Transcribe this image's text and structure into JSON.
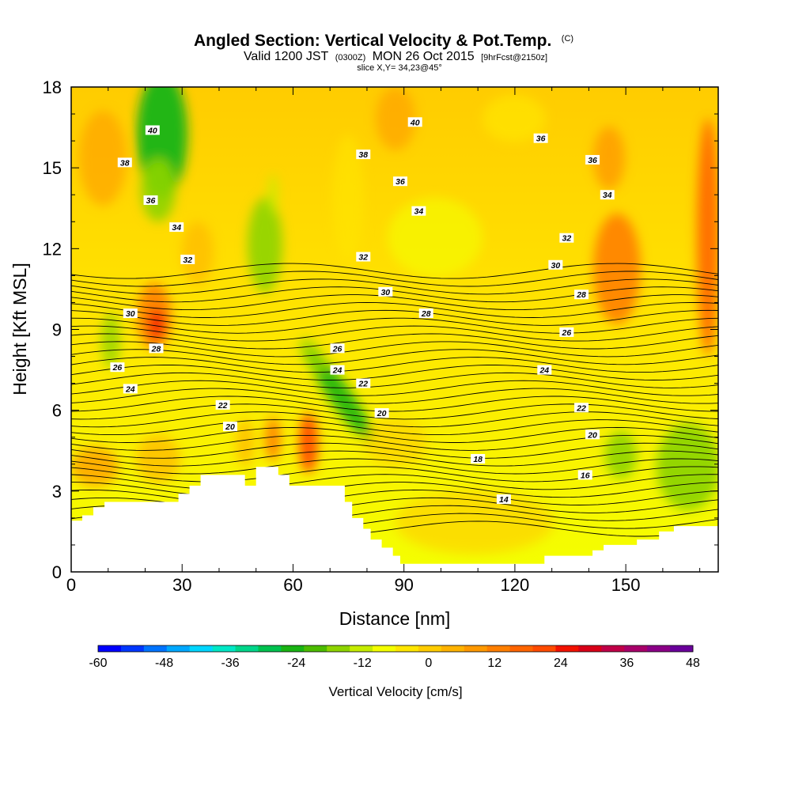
{
  "header": {
    "title_main": "Angled Section: Vertical Velocity & Pot.Temp.",
    "title_mark": "(C)",
    "valid_a": "Valid 1200 JST",
    "valid_b": "(0300Z)",
    "valid_c": "MON 26 Oct 2015",
    "valid_d": "[9hrFcst@2150z]",
    "slice": "slice X,Y= 34,23@45°"
  },
  "chart_data": {
    "type": "heatmap",
    "title": "Angled Section: Vertical Velocity & Pot.Temp.",
    "xlabel": "Distance [nm]",
    "ylabel": "Height [Kft MSL]",
    "xlim": [
      0,
      175
    ],
    "ylim": [
      0,
      18
    ],
    "x_ticks": [
      "0",
      "30",
      "60",
      "90",
      "120",
      "150"
    ],
    "x_tick_values": [
      0,
      30,
      60,
      90,
      120,
      150
    ],
    "y_ticks": [
      "0",
      "3",
      "6",
      "9",
      "12",
      "15",
      "18"
    ],
    "y_tick_values": [
      0,
      3,
      6,
      9,
      12,
      15,
      18
    ],
    "colorbar": {
      "title": "Vertical Velocity [cm/s]",
      "range": [
        -60,
        48
      ],
      "labels": [
        "-60",
        "-48",
        "-36",
        "-24",
        "-12",
        "0",
        "12",
        "24",
        "36",
        "48"
      ],
      "colors": [
        "#0000ff",
        "#0037ff",
        "#0074ff",
        "#00a8ff",
        "#00d6ff",
        "#00e8c6",
        "#00d68a",
        "#00c24f",
        "#19b413",
        "#4cbc00",
        "#8ed400",
        "#c5ec00",
        "#f4ff00",
        "#ffe600",
        "#ffcc00",
        "#ffb300",
        "#ff9900",
        "#ff7f00",
        "#ff6500",
        "#ff4b00",
        "#f21200",
        "#d80018",
        "#c00048",
        "#a8006a",
        "#8b0087",
        "#6a009b"
      ]
    },
    "theta_contour_labels": [
      {
        "v": "40",
        "x": 22,
        "y": 16.4
      },
      {
        "v": "38",
        "x": 14.5,
        "y": 15.2
      },
      {
        "v": "36",
        "x": 21.5,
        "y": 13.8
      },
      {
        "v": "34",
        "x": 28.5,
        "y": 12.8
      },
      {
        "v": "32",
        "x": 31.5,
        "y": 11.6
      },
      {
        "v": "30",
        "x": 16,
        "y": 9.6
      },
      {
        "v": "28",
        "x": 23,
        "y": 8.3
      },
      {
        "v": "26",
        "x": 12.5,
        "y": 7.6
      },
      {
        "v": "24",
        "x": 16,
        "y": 6.8
      },
      {
        "v": "22",
        "x": 41,
        "y": 6.2
      },
      {
        "v": "20",
        "x": 43,
        "y": 5.4
      },
      {
        "v": "40",
        "x": 93,
        "y": 16.7
      },
      {
        "v": "38",
        "x": 79,
        "y": 15.5
      },
      {
        "v": "36",
        "x": 89,
        "y": 14.5
      },
      {
        "v": "34",
        "x": 94,
        "y": 13.4
      },
      {
        "v": "32",
        "x": 79,
        "y": 11.7
      },
      {
        "v": "30",
        "x": 85,
        "y": 10.4
      },
      {
        "v": "28",
        "x": 96,
        "y": 9.6
      },
      {
        "v": "26",
        "x": 72,
        "y": 8.3
      },
      {
        "v": "24",
        "x": 72,
        "y": 7.5
      },
      {
        "v": "22",
        "x": 79,
        "y": 7.0
      },
      {
        "v": "20",
        "x": 84,
        "y": 5.9
      },
      {
        "v": "36",
        "x": 127,
        "y": 16.1
      },
      {
        "v": "36",
        "x": 141,
        "y": 15.3
      },
      {
        "v": "34",
        "x": 145,
        "y": 14.0
      },
      {
        "v": "32",
        "x": 134,
        "y": 12.4
      },
      {
        "v": "30",
        "x": 131,
        "y": 11.4
      },
      {
        "v": "28",
        "x": 138,
        "y": 10.3
      },
      {
        "v": "26",
        "x": 134,
        "y": 8.9
      },
      {
        "v": "24",
        "x": 128,
        "y": 7.5
      },
      {
        "v": "22",
        "x": 138,
        "y": 6.1
      },
      {
        "v": "20",
        "x": 141,
        "y": 5.1
      },
      {
        "v": "18",
        "x": 110,
        "y": 4.2
      },
      {
        "v": "16",
        "x": 139,
        "y": 3.6
      },
      {
        "v": "14",
        "x": 117,
        "y": 2.7
      }
    ],
    "terrain_profile": [
      [
        0,
        1.9
      ],
      [
        3,
        1.9
      ],
      [
        3,
        2.1
      ],
      [
        6,
        2.1
      ],
      [
        6,
        2.4
      ],
      [
        9,
        2.4
      ],
      [
        9,
        2.6
      ],
      [
        29,
        2.6
      ],
      [
        29,
        2.9
      ],
      [
        32,
        2.9
      ],
      [
        32,
        3.2
      ],
      [
        35,
        3.2
      ],
      [
        35,
        3.6
      ],
      [
        47,
        3.6
      ],
      [
        47,
        3.2
      ],
      [
        50,
        3.2
      ],
      [
        50,
        3.9
      ],
      [
        56,
        3.9
      ],
      [
        56,
        3.6
      ],
      [
        59,
        3.6
      ],
      [
        59,
        3.2
      ],
      [
        74,
        3.2
      ],
      [
        74,
        2.6
      ],
      [
        76,
        2.6
      ],
      [
        76,
        2.0
      ],
      [
        79,
        2.0
      ],
      [
        79,
        1.6
      ],
      [
        81,
        1.6
      ],
      [
        81,
        1.2
      ],
      [
        84,
        1.2
      ],
      [
        84,
        0.9
      ],
      [
        87,
        0.9
      ],
      [
        87,
        0.6
      ],
      [
        89,
        0.6
      ],
      [
        89,
        0.3
      ],
      [
        128,
        0.3
      ],
      [
        128,
        0.6
      ],
      [
        141,
        0.6
      ],
      [
        141,
        0.8
      ],
      [
        144,
        0.8
      ],
      [
        144,
        1.0
      ],
      [
        153,
        1.0
      ],
      [
        153,
        1.2
      ],
      [
        159,
        1.2
      ],
      [
        159,
        1.5
      ],
      [
        163,
        1.5
      ],
      [
        163,
        1.7
      ],
      [
        175,
        1.7
      ]
    ]
  }
}
